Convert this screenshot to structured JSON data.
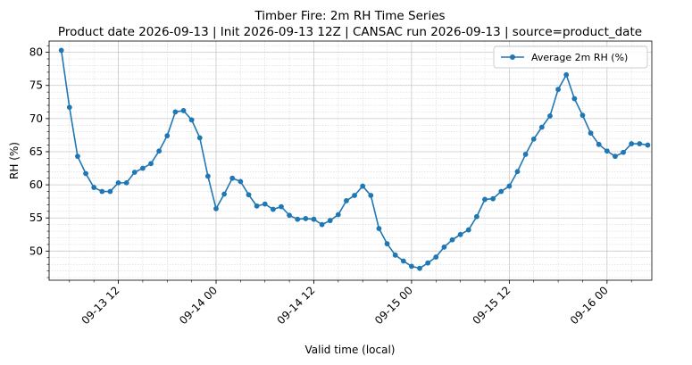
{
  "chart_data": {
    "type": "line",
    "title": "Timber Fire: 2m RH Time Series",
    "subtitle": "Product date 2026-09-13 | Init 2026-09-13 12Z | CANSAC run 2026-09-13 | source=product_date",
    "xlabel": "Valid time (local)",
    "ylabel": "RH (%)",
    "x_unit": "hour",
    "x_start": "2026-09-13 05:00",
    "xlim": [
      "2026-09-13 03:30",
      "2026-09-16 05:30"
    ],
    "ylim": [
      45.6,
      81.7
    ],
    "x_ticks": [
      {
        "label": "09-13 12",
        "value": "2026-09-13 12:00"
      },
      {
        "label": "09-14 00",
        "value": "2026-09-14 00:00"
      },
      {
        "label": "09-14 12",
        "value": "2026-09-14 12:00"
      },
      {
        "label": "09-15 00",
        "value": "2026-09-15 00:00"
      },
      {
        "label": "09-15 12",
        "value": "2026-09-15 12:00"
      },
      {
        "label": "09-16 00",
        "value": "2026-09-16 00:00"
      }
    ],
    "y_ticks": [
      50,
      55,
      60,
      65,
      70,
      75,
      80
    ],
    "grid": true,
    "legend_position": "top-right",
    "series": [
      {
        "name": "Average 2m RH (%)",
        "color": "#1f77b4",
        "values": [
          80.3,
          71.7,
          64.3,
          61.7,
          59.6,
          59.0,
          59.0,
          60.3,
          60.3,
          61.9,
          62.5,
          63.2,
          65.1,
          67.4,
          71.0,
          71.2,
          69.8,
          67.1,
          61.3,
          56.4,
          58.6,
          61.0,
          60.5,
          58.5,
          56.8,
          57.1,
          56.3,
          56.7,
          55.4,
          54.8,
          54.9,
          54.8,
          54.0,
          54.6,
          55.5,
          57.6,
          58.4,
          59.8,
          58.4,
          53.4,
          51.1,
          49.4,
          48.5,
          47.7,
          47.4,
          48.2,
          49.1,
          50.6,
          51.7,
          52.5,
          53.2,
          55.2,
          57.8,
          57.9,
          59.0,
          59.8,
          62.0,
          64.6,
          66.9,
          68.7,
          70.4,
          74.4,
          76.6,
          73.0,
          70.5,
          67.8,
          66.1,
          65.1,
          64.3,
          64.9,
          66.2,
          66.2,
          66.0
        ]
      }
    ]
  }
}
